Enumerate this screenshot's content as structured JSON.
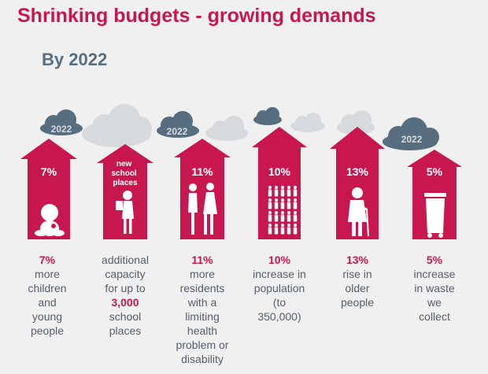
{
  "title": "Shrinking budgets - growing demands",
  "subtitle": "By 2022",
  "colors": {
    "accent": "#c8174f",
    "cloud_dark": "#566e80",
    "cloud_light": "#d7dadd",
    "text": "#55606a"
  },
  "columns": [
    {
      "badge": "2022",
      "arrow_label": "7%",
      "icon": "child-icon",
      "caption": {
        "highlight": "7%",
        "lines": [
          "more",
          "children",
          "and",
          "young",
          "people"
        ]
      }
    },
    {
      "badge": "",
      "arrow_label": "new school places",
      "arrow_lines": [
        "new",
        "school",
        "places"
      ],
      "icon": "reading-girl-icon",
      "caption": {
        "lines_before": [
          "additional",
          "capacity",
          "for up to"
        ],
        "highlight": "3,000",
        "lines": [
          "school",
          "places"
        ]
      }
    },
    {
      "badge": "2022",
      "arrow_label": "11%",
      "icon": "two-people-icon",
      "caption": {
        "highlight": "11%",
        "lines": [
          "more",
          "residents",
          "with a",
          "limiting",
          "health",
          "problem or",
          "disability"
        ]
      }
    },
    {
      "badge": "",
      "arrow_label": "10%",
      "icon": "population-icon",
      "caption": {
        "highlight": "10%",
        "lines": [
          "increase in",
          "population",
          "(to",
          "350,000)"
        ]
      }
    },
    {
      "badge": "",
      "arrow_label": "13%",
      "icon": "older-person-icon",
      "caption": {
        "highlight": "13%",
        "lines": [
          "rise in",
          "older",
          "people"
        ]
      }
    },
    {
      "badge": "2022",
      "arrow_label": "5%",
      "icon": "wheelie-bin-icon",
      "caption": {
        "highlight": "5%",
        "lines": [
          "increase",
          "in waste",
          "we",
          "collect"
        ]
      }
    }
  ]
}
